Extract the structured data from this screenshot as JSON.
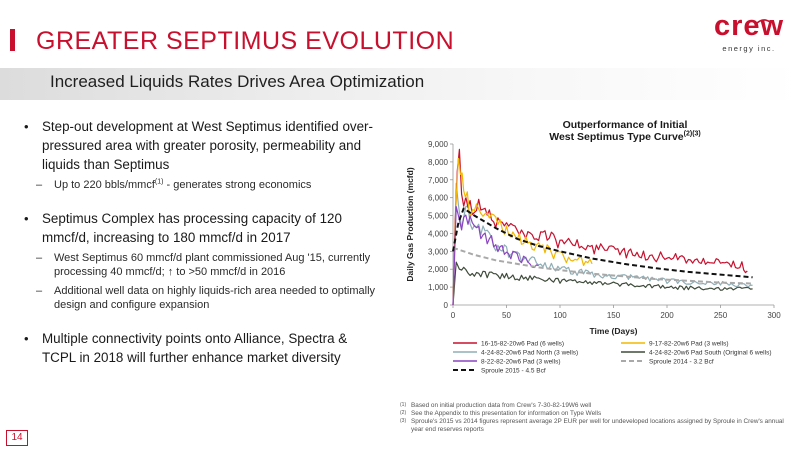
{
  "page": {
    "title": "GREATER SEPTIMUS EVOLUTION",
    "subtitle": "Increased Liquids Rates Drives Area Optimization",
    "page_number": "14",
    "accent_color": "#c8102e"
  },
  "logo": {
    "word": "crew",
    "tagline": "energy inc."
  },
  "bullets": {
    "b1": {
      "text": "Step-out development at West Septimus identified over-pressured area with greater porosity, permeability and liquids than Septimus"
    },
    "b1_sub1": {
      "pre": "Up to 220 bbls/mmcf",
      "sup": "(1)",
      "post": " - generates strong economics"
    },
    "b2": {
      "text": "Septimus Complex has processing capacity of 120 mmcf/d, increasing to 180 mmcf/d in 2017"
    },
    "b2_sub1": {
      "text": "West Septimus 60 mmcf/d plant commissioned Aug '15, currently processing 40 mmcf/d; ↑ to >50 mmcf/d in 2016"
    },
    "b2_sub2": {
      "text": "Additional well data on highly liquids-rich area needed to optimally design and configure expansion"
    },
    "b3": {
      "text": "Multiple connectivity points onto Alliance, Spectra & TCPL in 2018 will further enhance market diversity"
    }
  },
  "footnotes": [
    {
      "mark": "(1)",
      "text": "Based on initial production data from Crew's 7-30-82-19W6 well"
    },
    {
      "mark": "(2)",
      "text": "See the Appendix to this presentation for information on Type Wells"
    },
    {
      "mark": "(3)",
      "text": "Sproule's 2015 vs 2014 figures represent average 2P EUR per well for undeveloped locations assigned by Sproule in Crew's annual year end reserves reports"
    }
  ],
  "chart_data": {
    "type": "line",
    "title_line1": "Outperformance of Initial",
    "title_line2": "West Septimus Type Curve",
    "title_sup": "(2)(3)",
    "xlabel": "Time (Days)",
    "ylabel": "Daily Gas Production (mcfd)",
    "xlim": [
      0,
      300
    ],
    "ylim": [
      0,
      9000
    ],
    "xticks": [
      0,
      50,
      100,
      150,
      200,
      250,
      300
    ],
    "yticks": [
      0,
      1000,
      2000,
      3000,
      4000,
      5000,
      6000,
      7000,
      8000,
      9000
    ],
    "ytick_labels": [
      "0",
      "1,000",
      "2,000",
      "3,000",
      "4,000",
      "5,000",
      "6,000",
      "7,000",
      "8,000",
      "9,000"
    ],
    "grid": false,
    "legend_position": "bottom",
    "series": [
      {
        "name": "16-15-82-20w6 Pad (6 wells)",
        "color": "#c8102e",
        "dash": false,
        "x": [
          0,
          2,
          4,
          6,
          8,
          12,
          20,
          30,
          40,
          50,
          70,
          90,
          110,
          130,
          150,
          170,
          190,
          210,
          230,
          250,
          270,
          275
        ],
        "y": [
          0,
          4500,
          7500,
          8700,
          6200,
          5700,
          5600,
          5200,
          4700,
          4400,
          4000,
          3700,
          3400,
          3200,
          3000,
          2800,
          2700,
          2600,
          2500,
          2300,
          2200,
          1900
        ]
      },
      {
        "name": "9-17-82-20w6 Pad (3 wells)",
        "color": "#f2b800",
        "dash": false,
        "x": [
          0,
          3,
          5,
          7,
          10,
          15,
          20,
          30,
          40,
          50,
          60,
          70,
          80,
          90,
          100,
          120,
          130
        ],
        "y": [
          0,
          6000,
          8200,
          7300,
          6200,
          5600,
          5200,
          5000,
          4700,
          4300,
          3800,
          3400,
          3200,
          3000,
          2700,
          2400,
          2300
        ]
      },
      {
        "name": "4-24-82-20w6 Pad North (3 wells)",
        "color": "#8eaeb6",
        "dash": false,
        "x": [
          0,
          3,
          5,
          8,
          12,
          20,
          30,
          40,
          50,
          60,
          70,
          80,
          90,
          100,
          110,
          120,
          130,
          150,
          170,
          190,
          210,
          230,
          250,
          270,
          280
        ],
        "y": [
          0,
          6800,
          5600,
          4300,
          5200,
          4500,
          3900,
          3300,
          3000,
          2700,
          2500,
          2400,
          2200,
          2000,
          1900,
          1800,
          1700,
          1600,
          1500,
          1400,
          1300,
          1250,
          1200,
          1150,
          1100
        ]
      },
      {
        "name": "4-24-82-20w6 Pad South (Original 6 wells)",
        "color": "#3e4b3a",
        "dash": false,
        "x": [
          0,
          3,
          6,
          10,
          20,
          40,
          60,
          80,
          100,
          120,
          140,
          160,
          180,
          200,
          220,
          240,
          260,
          280
        ],
        "y": [
          0,
          2400,
          2000,
          1900,
          1800,
          1650,
          1550,
          1450,
          1350,
          1300,
          1200,
          1150,
          1100,
          1000,
          950,
          950,
          900,
          900
        ]
      },
      {
        "name": "8-22-82-20w6 Pad (3 wells)",
        "color": "#8a45c1",
        "dash": false,
        "x": [
          0,
          3,
          5,
          8,
          12,
          20,
          30,
          40,
          50,
          60,
          70,
          80
        ],
        "y": [
          0,
          5500,
          5000,
          4200,
          4800,
          4300,
          3800,
          3400,
          3000,
          2700,
          2400,
          2200
        ]
      },
      {
        "name": "Sproule 2014 - 3.2 Bcf",
        "color": "#a9a9a9",
        "dash": true,
        "x": [
          0,
          10,
          20,
          40,
          60,
          80,
          100,
          130,
          160,
          190,
          220,
          250,
          280
        ],
        "y": [
          3200,
          3000,
          2800,
          2500,
          2300,
          2100,
          1950,
          1750,
          1600,
          1450,
          1350,
          1250,
          1200
        ]
      },
      {
        "name": "Sproule 2015 - 4.5 Bcf",
        "color": "#111111",
        "dash": true,
        "x": [
          0,
          5,
          10,
          20,
          40,
          60,
          80,
          100,
          130,
          160,
          190,
          220,
          250,
          280
        ],
        "y": [
          3000,
          4600,
          5400,
          5000,
          4300,
          3700,
          3300,
          3000,
          2600,
          2300,
          2050,
          1850,
          1700,
          1550
        ]
      }
    ]
  }
}
